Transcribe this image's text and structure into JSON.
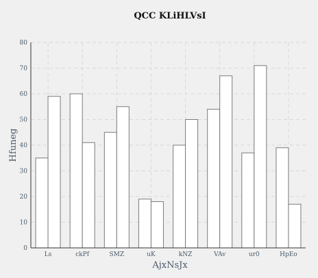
{
  "chart_data": {
    "type": "bar",
    "title": "QCC KLiHLVsI",
    "xlabel": "AjxNsJx",
    "ylabel": "Hfuneg",
    "ylim": [
      0,
      80
    ],
    "yticks": [
      0,
      10,
      20,
      30,
      40,
      50,
      60,
      70,
      80
    ],
    "grid": true,
    "categories": [
      "Ls",
      "ckPf",
      "SMZ",
      "uK",
      "kNZ",
      "VAv",
      "ur0",
      "HpEo"
    ],
    "series": [
      {
        "values": [
          35,
          60,
          45,
          19,
          40,
          54,
          37,
          39
        ]
      },
      {
        "values": [
          59,
          41,
          55,
          18,
          50,
          67,
          71,
          17
        ]
      }
    ],
    "colors": {
      "bar_fill": "#ffffff",
      "bar_stroke": "#7a7a7a",
      "background": "#f0f0f0"
    }
  }
}
